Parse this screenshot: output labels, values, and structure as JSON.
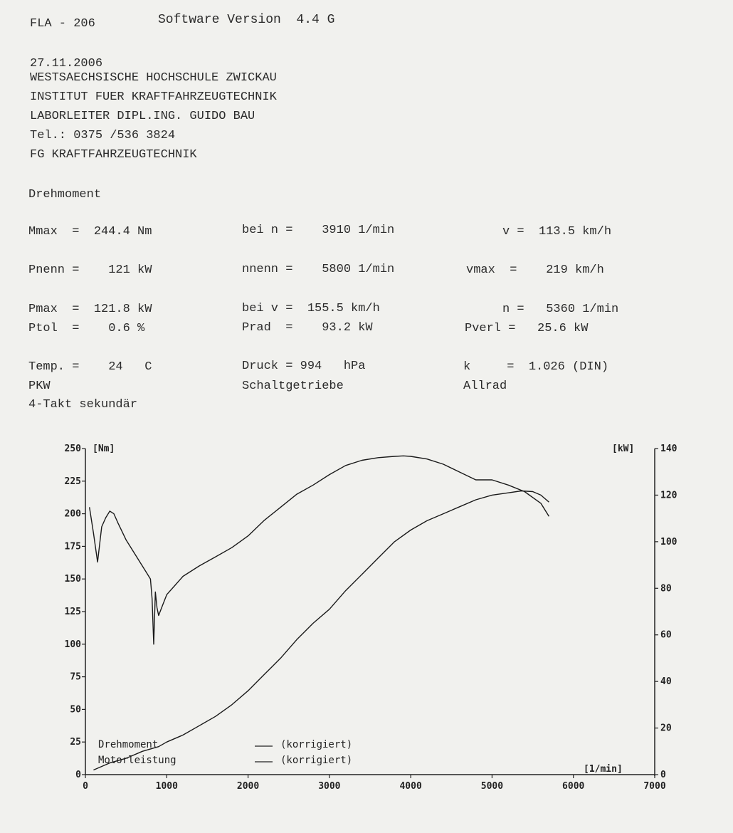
{
  "header": {
    "model": "FLA - 206",
    "software": "Software Version  4.4 G",
    "date": "27.11.2006",
    "line1": "WESTSAECHSISCHE HOCHSCHULE ZWICKAU",
    "line2": "INSTITUT FUER KRAFTFAHRZEUGTECHNIK",
    "line3": "LABORLEITER DIPL.ING. GUIDO BAU",
    "line4": "Tel.: 0375 /536 3824",
    "line5": "FG KRAFTFAHRZEUGTECHNIK"
  },
  "section": "Drehmoment",
  "results": {
    "row1": {
      "a": "Mmax  =  244.4 Nm",
      "b": "bei n =    3910 1/min",
      "c": "v =  113.5 km/h"
    },
    "row2": {
      "a": "Pnenn =    121 kW",
      "b": "nnenn =    5800 1/min",
      "c": "vmax  =    219 km/h"
    },
    "row3": {
      "a": "Pmax  =  121.8 kW",
      "b": "bei v =  155.5 km/h",
      "c": "n =   5360 1/min"
    },
    "row4": {
      "a": "Ptol  =    0.6 %",
      "b": "Prad  =    93.2 kW",
      "c": "Pverl =   25.6 kW"
    },
    "row5": {
      "a": "Temp. =    24   C",
      "b": "Druck = 994   hPa",
      "c": "k     =  1.026 (DIN)"
    },
    "row6": {
      "a": "PKW",
      "b": "Schaltgetriebe",
      "c": "Allrad"
    },
    "row7": {
      "a": "4-Takt sekundär"
    }
  },
  "chart_data": {
    "type": "line",
    "left_unit": "[Nm]",
    "right_unit": "[kW]",
    "x_unit": "[1/min]",
    "xlim": [
      0,
      7000
    ],
    "ylim_left": [
      0,
      250
    ],
    "ylim_right": [
      0,
      140
    ],
    "x_ticks": [
      "0",
      "1000",
      "2000",
      "3000",
      "4000",
      "5000",
      "6000",
      "7000"
    ],
    "y_left_ticks": [
      "0",
      "25",
      "50",
      "75",
      "100",
      "125",
      "150",
      "175",
      "200",
      "225",
      "250"
    ],
    "y_right_ticks": [
      "0",
      "20",
      "40",
      "60",
      "80",
      "100",
      "120",
      "140"
    ],
    "legend": [
      {
        "label": "Drehmoment",
        "note": "(korrigiert)"
      },
      {
        "label": "Motorleistung",
        "note": "(korrigiert)"
      }
    ],
    "series": [
      {
        "name": "Drehmoment",
        "axis": "left",
        "x": [
          50,
          100,
          150,
          200,
          250,
          300,
          350,
          400,
          500,
          600,
          700,
          750,
          800,
          820,
          840,
          860,
          880,
          900,
          950,
          1000,
          1100,
          1200,
          1400,
          1600,
          1800,
          2000,
          2200,
          2400,
          2600,
          2800,
          3000,
          3200,
          3400,
          3600,
          3800,
          3910,
          4000,
          4200,
          4400,
          4600,
          4800,
          5000,
          5200,
          5400,
          5600,
          5700
        ],
        "y": [
          205,
          185,
          163,
          190,
          197,
          202,
          200,
          193,
          180,
          170,
          160,
          155,
          150,
          135,
          100,
          140,
          128,
          122,
          130,
          138,
          145,
          152,
          160,
          167,
          174,
          183,
          195,
          205,
          215,
          222,
          230,
          237,
          241,
          243,
          244,
          244.4,
          244,
          242,
          238,
          232,
          226,
          226,
          222,
          217,
          208,
          198
        ]
      },
      {
        "name": "Motorleistung",
        "axis": "right",
        "x": [
          100,
          300,
          500,
          700,
          900,
          1000,
          1200,
          1400,
          1600,
          1800,
          2000,
          2200,
          2400,
          2600,
          2800,
          3000,
          3200,
          3400,
          3600,
          3800,
          4000,
          4200,
          4400,
          4600,
          4800,
          5000,
          5200,
          5360,
          5500,
          5600,
          5700
        ],
        "y": [
          2,
          5,
          7,
          10,
          12,
          14,
          17,
          21,
          25,
          30,
          36,
          43,
          50,
          58,
          65,
          71,
          79,
          86,
          93,
          100,
          105,
          109,
          112,
          115,
          118,
          120,
          121,
          121.8,
          121.5,
          120,
          117
        ]
      }
    ]
  }
}
